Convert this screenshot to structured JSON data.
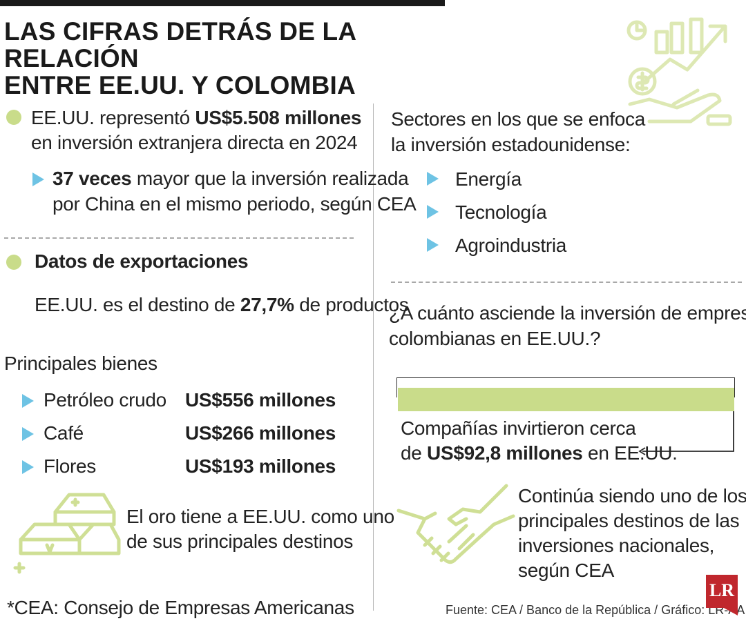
{
  "title": {
    "line1": "LAS CIFRAS DETRÁS DE LA RELACIÓN",
    "line2": "ENTRE EE.UU. Y COLOMBIA"
  },
  "investment": {
    "text1_prefix": "EE.UU. representó ",
    "text1_bold": "US$5.508 millones",
    "text2": "en inversión extranjera directa en 2024",
    "sub_bold": "37 veces",
    "sub_text1": " mayor que la inversión realizada",
    "sub_text2": "por China en el mismo periodo, según CEA"
  },
  "exports": {
    "heading": "Datos de exportaciones",
    "text_prefix": "EE.UU. es el destino de ",
    "text_bold": "27,7%",
    "text_suffix": " de productos"
  },
  "goods": {
    "heading": "Principales bienes",
    "items": [
      {
        "name": "Petróleo crudo",
        "value": "US$556 millones"
      },
      {
        "name": "Café",
        "value": "US$266 millones"
      },
      {
        "name": "Flores",
        "value": "US$193 millones"
      }
    ],
    "gold_line1": "El oro tiene a EE.UU. como uno",
    "gold_line2": "de sus principales destinos"
  },
  "footnote": "*CEA: Consejo de Empresas Americanas",
  "sectors": {
    "heading_line1": "Sectores en los que se enfoca",
    "heading_line2": "la inversión estadounidense:",
    "items": [
      "Energía",
      "Tecnología",
      "Agroindustria"
    ]
  },
  "colombian_investment": {
    "question_line1": "¿A cuánto asciende la inversión de empresas",
    "question_line2": "colombianas en EE.UU.?",
    "text_line1": "Compañías invirtieron cerca",
    "text_prefix": "de ",
    "text_bold": "US$92,8 millones",
    "text_suffix": " en EE.UU."
  },
  "handshake_text": {
    "line1": "Continúa siendo uno de los",
    "line2": "principales destinos de las",
    "line3": "inversiones nacionales,",
    "line4": "según CEA"
  },
  "source": "Fuente: CEA / Banco de la República / Gráfico: LR-AA",
  "logo": "LR",
  "colors": {
    "accent_green": "#c9dc8a",
    "accent_blue": "#6ec3e4",
    "logo_red": "#c0272d"
  },
  "icons": [
    "money-growth-icon",
    "gold-bars-icon",
    "handshake-icon"
  ]
}
